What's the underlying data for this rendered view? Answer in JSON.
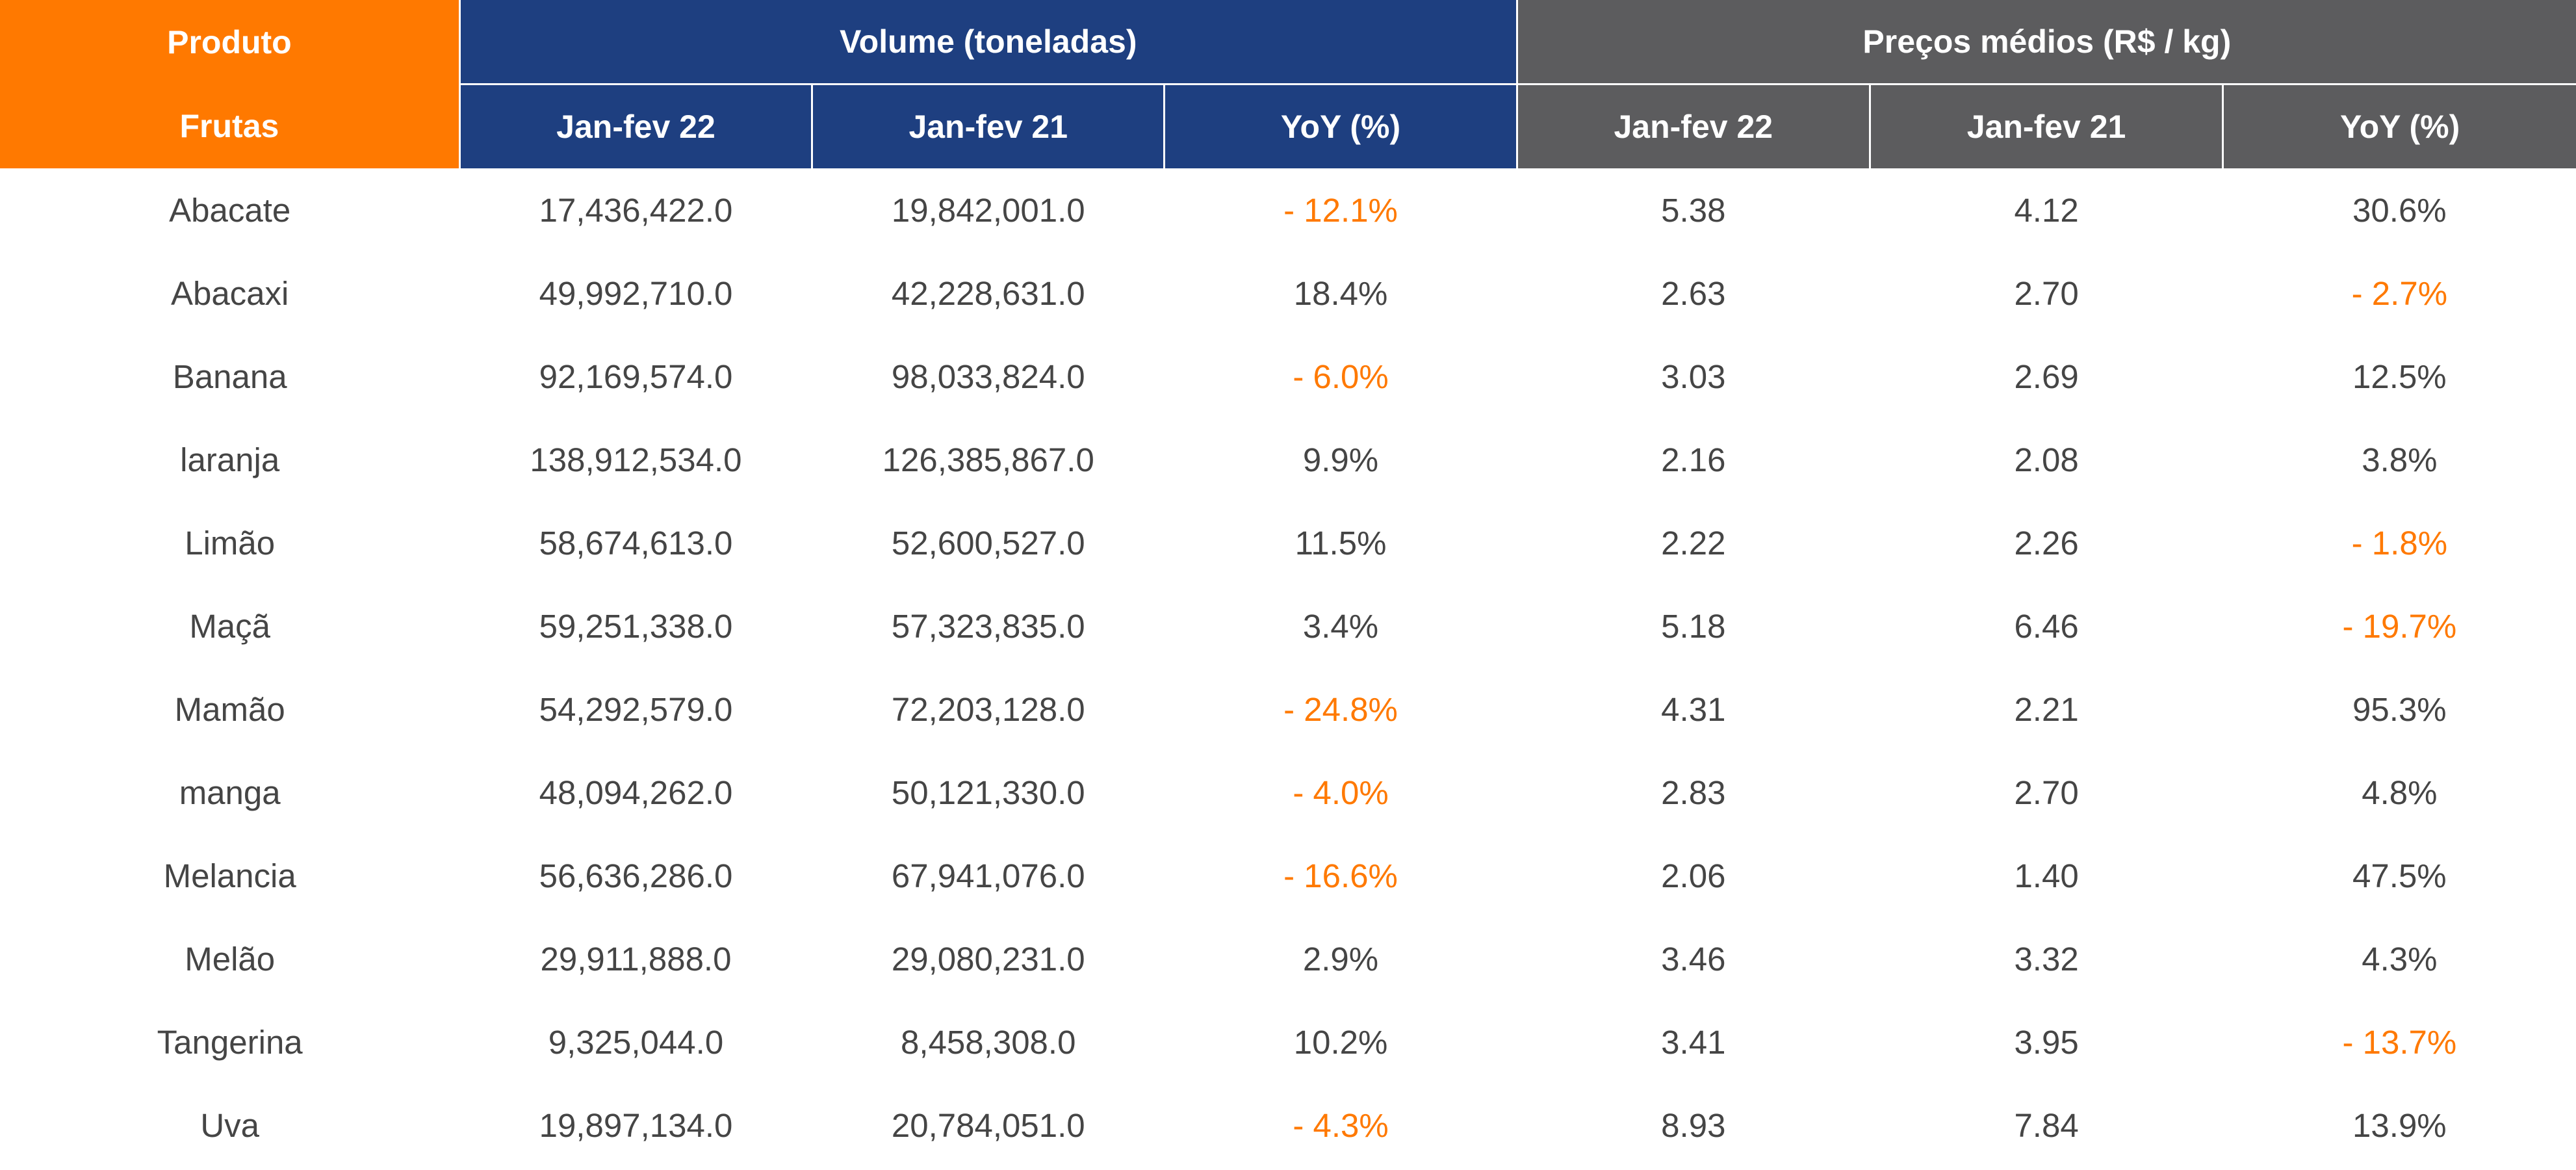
{
  "header": {
    "product_label": "Produto",
    "category_label": "Frutas",
    "volume_group": "Volume (toneladas)",
    "price_group": "Preços médios  (R$ / kg)",
    "volume_columns": [
      "Jan-fev 22",
      "Jan-fev 21",
      "YoY (%)"
    ],
    "price_columns": [
      "Jan-fev 22",
      "Jan-fev 21",
      "YoY (%)"
    ]
  },
  "colors": {
    "product_header": "#ff7900",
    "volume_header": "#1e3f80",
    "price_header": "#5c5c5e",
    "negative_text": "#ff7900",
    "body_text": "#454545"
  },
  "rows": [
    {
      "product": "Abacate",
      "vol_22": "17,436,422.0",
      "vol_21": "19,842,001.0",
      "vol_yoy": "- 12.1%",
      "vol_yoy_negative": true,
      "price_22": "5.38",
      "price_21": "4.12",
      "price_yoy": "30.6%",
      "price_yoy_negative": false
    },
    {
      "product": "Abacaxi",
      "vol_22": "49,992,710.0",
      "vol_21": "42,228,631.0",
      "vol_yoy": "18.4%",
      "vol_yoy_negative": false,
      "price_22": "2.63",
      "price_21": "2.70",
      "price_yoy": "- 2.7%",
      "price_yoy_negative": true
    },
    {
      "product": "Banana",
      "vol_22": "92,169,574.0",
      "vol_21": "98,033,824.0",
      "vol_yoy": "- 6.0%",
      "vol_yoy_negative": true,
      "price_22": "3.03",
      "price_21": "2.69",
      "price_yoy": "12.5%",
      "price_yoy_negative": false
    },
    {
      "product": "laranja",
      "vol_22": "138,912,534.0",
      "vol_21": "126,385,867.0",
      "vol_yoy": "9.9%",
      "vol_yoy_negative": false,
      "price_22": "2.16",
      "price_21": "2.08",
      "price_yoy": "3.8%",
      "price_yoy_negative": false
    },
    {
      "product": "Limão",
      "vol_22": "58,674,613.0",
      "vol_21": "52,600,527.0",
      "vol_yoy": "11.5%",
      "vol_yoy_negative": false,
      "price_22": "2.22",
      "price_21": "2.26",
      "price_yoy": "- 1.8%",
      "price_yoy_negative": true
    },
    {
      "product": "Maçã",
      "vol_22": "59,251,338.0",
      "vol_21": "57,323,835.0",
      "vol_yoy": "3.4%",
      "vol_yoy_negative": false,
      "price_22": "5.18",
      "price_21": "6.46",
      "price_yoy": "- 19.7%",
      "price_yoy_negative": true
    },
    {
      "product": "Mamão",
      "vol_22": "54,292,579.0",
      "vol_21": "72,203,128.0",
      "vol_yoy": "- 24.8%",
      "vol_yoy_negative": true,
      "price_22": "4.31",
      "price_21": "2.21",
      "price_yoy": "95.3%",
      "price_yoy_negative": false
    },
    {
      "product": "manga",
      "vol_22": "48,094,262.0",
      "vol_21": "50,121,330.0",
      "vol_yoy": "- 4.0%",
      "vol_yoy_negative": true,
      "price_22": "2.83",
      "price_21": "2.70",
      "price_yoy": "4.8%",
      "price_yoy_negative": false
    },
    {
      "product": "Melancia",
      "vol_22": "56,636,286.0",
      "vol_21": "67,941,076.0",
      "vol_yoy": "- 16.6%",
      "vol_yoy_negative": true,
      "price_22": "2.06",
      "price_21": "1.40",
      "price_yoy": "47.5%",
      "price_yoy_negative": false
    },
    {
      "product": "Melão",
      "vol_22": "29,911,888.0",
      "vol_21": "29,080,231.0",
      "vol_yoy": "2.9%",
      "vol_yoy_negative": false,
      "price_22": "3.46",
      "price_21": "3.32",
      "price_yoy": "4.3%",
      "price_yoy_negative": false
    },
    {
      "product": "Tangerina",
      "vol_22": "9,325,044.0",
      "vol_21": "8,458,308.0",
      "vol_yoy": "10.2%",
      "vol_yoy_negative": false,
      "price_22": "3.41",
      "price_21": "3.95",
      "price_yoy": "- 13.7%",
      "price_yoy_negative": true
    },
    {
      "product": "Uva",
      "vol_22": "19,897,134.0",
      "vol_21": "20,784,051.0",
      "vol_yoy": "- 4.3%",
      "vol_yoy_negative": true,
      "price_22": "8.93",
      "price_21": "7.84",
      "price_yoy": "13.9%",
      "price_yoy_negative": false
    }
  ]
}
